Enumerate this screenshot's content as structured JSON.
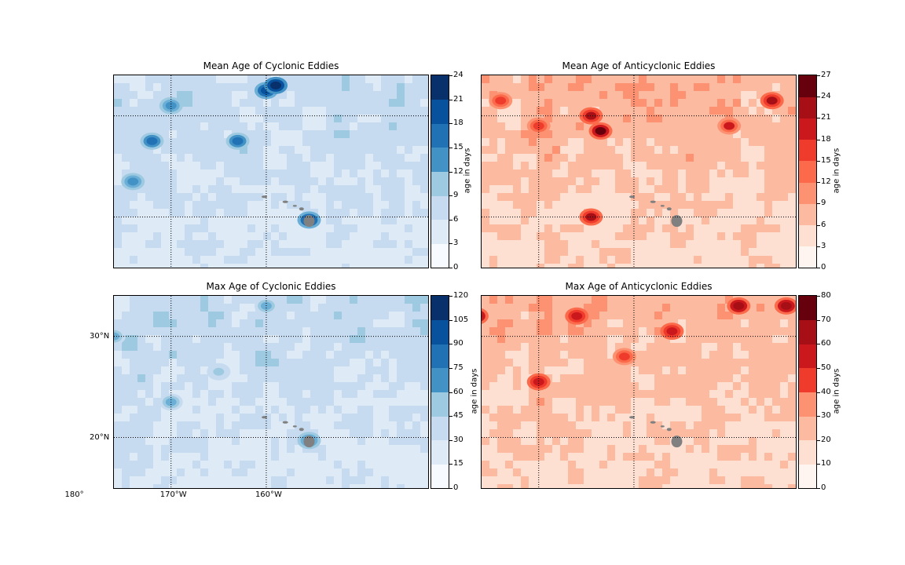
{
  "chart_data": [
    {
      "type": "heatmap",
      "title": "Mean Age of Cyclonic Eddies",
      "colormap": "Blues",
      "colors": [
        "#f7fbff",
        "#deebf7",
        "#c6dbef",
        "#9ecae1",
        "#6baed6",
        "#4292c6",
        "#2171b5",
        "#08519c",
        "#08306b"
      ],
      "colorbar": {
        "label": "age in days",
        "ticks": [
          "0",
          "3",
          "6",
          "9",
          "12",
          "15",
          "18",
          "21",
          "24"
        ],
        "range": [
          0,
          24
        ]
      },
      "extent": {
        "lon": [
          -176,
          -143
        ],
        "lat": [
          15,
          34
        ]
      },
      "gridlines": {
        "lon": [
          180,
          -170,
          -160
        ],
        "lat": [
          20,
          30
        ]
      },
      "xticklabels": [],
      "yticklabels": [],
      "hotspots": [
        {
          "lon": -160,
          "lat": 32.5,
          "value": 21
        },
        {
          "lon": -159,
          "lat": 33,
          "value": 24
        },
        {
          "lon": -172,
          "lat": 27.5,
          "value": 17
        },
        {
          "lon": -163,
          "lat": 27.5,
          "value": 17
        },
        {
          "lon": -178,
          "lat": 24.5,
          "value": 15
        },
        {
          "lon": -155.5,
          "lat": 19.7,
          "value": 20
        },
        {
          "lon": -174,
          "lat": 23.5,
          "value": 14
        },
        {
          "lon": -170,
          "lat": 31,
          "value": 14
        }
      ]
    },
    {
      "type": "heatmap",
      "title": "Mean Age of Anticyclonic Eddies",
      "colormap": "Reds",
      "colors": [
        "#fff5f0",
        "#fee0d2",
        "#fcbba1",
        "#fc9272",
        "#fb6a4a",
        "#ef3b2c",
        "#cb181d",
        "#a50f15",
        "#67000d"
      ],
      "colorbar": {
        "label": "age in days",
        "ticks": [
          "0",
          "3",
          "6",
          "9",
          "12",
          "15",
          "18",
          "21",
          "24",
          "27"
        ],
        "range": [
          0,
          27
        ]
      },
      "extent": {
        "lon": [
          -176,
          -143
        ],
        "lat": [
          15,
          34
        ]
      },
      "gridlines": {
        "lon": [
          180,
          -170,
          -160
        ],
        "lat": [
          20,
          30
        ]
      },
      "xticklabels": [],
      "yticklabels": [],
      "hotspots": [
        {
          "lon": -163.5,
          "lat": 28.5,
          "value": 24
        },
        {
          "lon": -164.5,
          "lat": 30,
          "value": 21
        },
        {
          "lon": -145.5,
          "lat": 31.5,
          "value": 21
        },
        {
          "lon": -164.5,
          "lat": 20,
          "value": 21
        },
        {
          "lon": -177.5,
          "lat": 30.5,
          "value": 18
        },
        {
          "lon": -174,
          "lat": 31.5,
          "value": 15
        },
        {
          "lon": -150,
          "lat": 29,
          "value": 18
        },
        {
          "lon": -170,
          "lat": 29,
          "value": 15
        }
      ]
    },
    {
      "type": "heatmap",
      "title": "Max Age of Cyclonic Eddies",
      "colormap": "Blues",
      "colors": [
        "#f7fbff",
        "#deebf7",
        "#c6dbef",
        "#9ecae1",
        "#6baed6",
        "#4292c6",
        "#2171b5",
        "#08519c",
        "#08306b"
      ],
      "colorbar": {
        "label": "age in days",
        "ticks": [
          "0",
          "15",
          "30",
          "45",
          "60",
          "75",
          "90",
          "105",
          "120"
        ],
        "range": [
          0,
          120
        ]
      },
      "extent": {
        "lon": [
          -176,
          -143
        ],
        "lat": [
          15,
          34
        ]
      },
      "gridlines": {
        "lon": [
          180,
          -170,
          -160
        ],
        "lat": [
          20,
          30
        ]
      },
      "xticklabels": [
        "180°",
        "170°W",
        "160°W"
      ],
      "yticklabels": [
        "30°N",
        "20°N"
      ],
      "hotspots": [
        {
          "lon": -155.5,
          "lat": 19.7,
          "value": 75
        },
        {
          "lon": -160,
          "lat": 33,
          "value": 60
        },
        {
          "lon": -176,
          "lat": 30,
          "value": 60
        },
        {
          "lon": -170,
          "lat": 23.5,
          "value": 60
        },
        {
          "lon": -178,
          "lat": 24.5,
          "value": 60
        },
        {
          "lon": -165,
          "lat": 26.5,
          "value": 45
        }
      ]
    },
    {
      "type": "heatmap",
      "title": "Max Age of Anticyclonic Eddies",
      "colormap": "Reds",
      "colors": [
        "#fff5f0",
        "#fee0d2",
        "#fcbba1",
        "#fc9272",
        "#fb6a4a",
        "#ef3b2c",
        "#cb181d",
        "#a50f15",
        "#67000d"
      ],
      "colorbar": {
        "label": "age in days",
        "ticks": [
          "0",
          "10",
          "20",
          "30",
          "40",
          "50",
          "60",
          "70",
          "80"
        ],
        "range": [
          0,
          80
        ]
      },
      "extent": {
        "lon": [
          -176,
          -143
        ],
        "lat": [
          15,
          34
        ]
      },
      "gridlines": {
        "lon": [
          180,
          -170,
          -160
        ],
        "lat": [
          20,
          30
        ]
      },
      "xticklabels": [],
      "yticklabels": [],
      "hotspots": [
        {
          "lon": -149,
          "lat": 33,
          "value": 70
        },
        {
          "lon": -144,
          "lat": 33,
          "value": 70
        },
        {
          "lon": -176.5,
          "lat": 32,
          "value": 70
        },
        {
          "lon": -166,
          "lat": 32,
          "value": 60
        },
        {
          "lon": -156,
          "lat": 30.5,
          "value": 60
        },
        {
          "lon": -170,
          "lat": 25.5,
          "value": 60
        },
        {
          "lon": -178,
          "lat": 29,
          "value": 50
        },
        {
          "lon": -161,
          "lat": 28,
          "value": 50
        }
      ]
    }
  ]
}
